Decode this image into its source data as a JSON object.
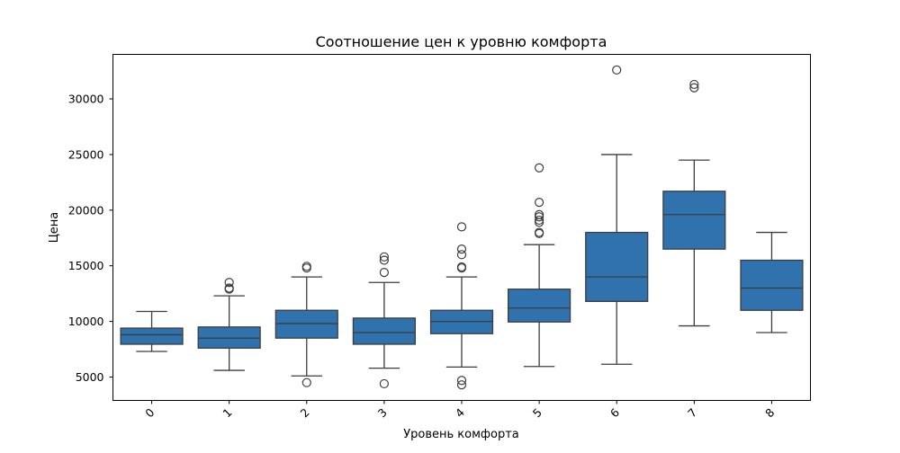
{
  "chart_data": {
    "type": "box",
    "title": "Соотношение цен к уровню комфорта",
    "xlabel": "Уровень комфорта",
    "ylabel": "Цена",
    "categories": [
      "0",
      "1",
      "2",
      "3",
      "4",
      "5",
      "6",
      "7",
      "8"
    ],
    "ylim": [
      2900,
      34000
    ],
    "yticks": [
      5000,
      10000,
      15000,
      20000,
      25000,
      30000
    ],
    "grid": false,
    "box_color": "#2f72ad",
    "line_color": "#3d3d3d",
    "boxes": [
      {
        "category": "0",
        "whisker_low": 7300,
        "q1": 7950,
        "median": 8800,
        "q3": 9400,
        "whisker_high": 10900,
        "outliers": []
      },
      {
        "category": "1",
        "whisker_low": 5600,
        "q1": 7600,
        "median": 8500,
        "q3": 9500,
        "whisker_high": 12300,
        "outliers": [
          12900,
          13000,
          13500
        ]
      },
      {
        "category": "2",
        "whisker_low": 5100,
        "q1": 8500,
        "median": 9800,
        "q3": 11000,
        "whisker_high": 14000,
        "outliers": [
          4500,
          14800,
          14950
        ]
      },
      {
        "category": "3",
        "whisker_low": 5800,
        "q1": 7950,
        "median": 9000,
        "q3": 10300,
        "whisker_high": 13500,
        "outliers": [
          4400,
          14400,
          15500,
          15800
        ]
      },
      {
        "category": "4",
        "whisker_low": 5900,
        "q1": 8900,
        "median": 10000,
        "q3": 11000,
        "whisker_high": 14000,
        "outliers": [
          4300,
          4700,
          14800,
          14900,
          16000,
          16500,
          18500
        ]
      },
      {
        "category": "5",
        "whisker_low": 5950,
        "q1": 9950,
        "median": 11200,
        "q3": 12900,
        "whisker_high": 16900,
        "outliers": [
          17900,
          18000,
          18900,
          19100,
          19400,
          19600,
          20700,
          23800
        ]
      },
      {
        "category": "6",
        "whisker_low": 6150,
        "q1": 11800,
        "median": 14000,
        "q3": 18000,
        "whisker_high": 25000,
        "outliers": [
          32600
        ]
      },
      {
        "category": "7",
        "whisker_low": 9600,
        "q1": 16500,
        "median": 19600,
        "q3": 21700,
        "whisker_high": 24500,
        "outliers": [
          31000,
          31300
        ]
      },
      {
        "category": "8",
        "whisker_low": 9000,
        "q1": 11000,
        "median": 13000,
        "q3": 15500,
        "whisker_high": 18000,
        "outliers": []
      }
    ]
  }
}
